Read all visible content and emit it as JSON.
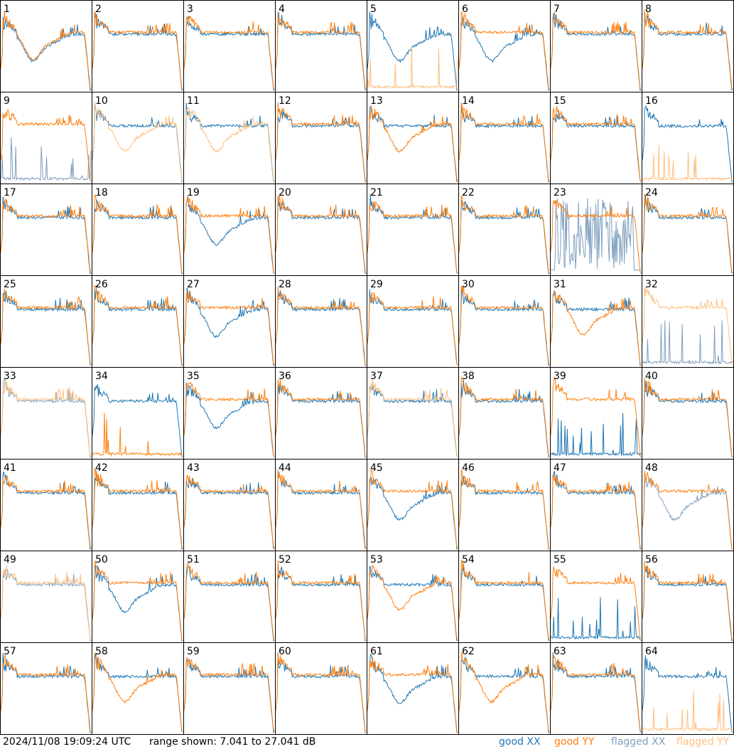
{
  "footer": {
    "timestamp": "2024/11/08 19:09:24 UTC",
    "range_text": "range shown: 7.041 to 27.041 dB",
    "legend": {
      "good_xx": "good XX",
      "good_yy": "good YY",
      "flagged_xx": "flagged XX",
      "flagged_yy": "flagged YY"
    }
  },
  "colors": {
    "good_xx": "#1f77b4",
    "good_yy": "#ff7f0e",
    "flagged_xx": "#7f9fbf",
    "flagged_yy": "#ffbf80",
    "grid": "#000000"
  },
  "chart_data": {
    "type": "line",
    "layout": "8x8 small multiples (bandpass spectra per antenna)",
    "ylim": [
      7.041,
      27.041
    ],
    "yunit": "dB",
    "panels": [
      {
        "id": "1",
        "xx": "good",
        "yy": "good",
        "shape_xx": "sag",
        "shape_yy": "sag"
      },
      {
        "id": "2",
        "xx": "good",
        "yy": "good"
      },
      {
        "id": "3",
        "xx": "good",
        "yy": "good"
      },
      {
        "id": "4",
        "xx": "good",
        "yy": "good"
      },
      {
        "id": "5",
        "xx": "good",
        "yy": "flagged",
        "shape_xx": "sag",
        "shape_yy": "low"
      },
      {
        "id": "6",
        "xx": "good",
        "yy": "good",
        "shape_xx": "sag"
      },
      {
        "id": "7",
        "xx": "good",
        "yy": "good"
      },
      {
        "id": "8",
        "xx": "good",
        "yy": "good"
      },
      {
        "id": "9",
        "xx": "flagged",
        "yy": "good",
        "shape_xx": "low"
      },
      {
        "id": "10",
        "xx": "good",
        "yy": "flagged",
        "shape_yy": "sag"
      },
      {
        "id": "11",
        "xx": "good",
        "yy": "flagged",
        "shape_yy": "sag"
      },
      {
        "id": "12",
        "xx": "good",
        "yy": "good"
      },
      {
        "id": "13",
        "xx": "good",
        "yy": "good",
        "shape_yy": "sag"
      },
      {
        "id": "14",
        "xx": "good",
        "yy": "good"
      },
      {
        "id": "15",
        "xx": "good",
        "yy": "good"
      },
      {
        "id": "16",
        "xx": "good",
        "yy": "flagged",
        "shape_yy": "low"
      },
      {
        "id": "17",
        "xx": "good",
        "yy": "good"
      },
      {
        "id": "18",
        "xx": "good",
        "yy": "good"
      },
      {
        "id": "19",
        "xx": "good",
        "yy": "good",
        "shape_xx": "sag"
      },
      {
        "id": "20",
        "xx": "good",
        "yy": "good"
      },
      {
        "id": "21",
        "xx": "good",
        "yy": "good"
      },
      {
        "id": "22",
        "xx": "good",
        "yy": "good"
      },
      {
        "id": "23",
        "xx": "flagged",
        "yy": "good",
        "shape_xx": "noise"
      },
      {
        "id": "24",
        "xx": "good",
        "yy": "good"
      },
      {
        "id": "25",
        "xx": "good",
        "yy": "good"
      },
      {
        "id": "26",
        "xx": "good",
        "yy": "good"
      },
      {
        "id": "27",
        "xx": "good",
        "yy": "good",
        "shape_xx": "sag"
      },
      {
        "id": "28",
        "xx": "good",
        "yy": "good"
      },
      {
        "id": "29",
        "xx": "good",
        "yy": "good"
      },
      {
        "id": "30",
        "xx": "good",
        "yy": "good"
      },
      {
        "id": "31",
        "xx": "good",
        "yy": "good",
        "shape_yy": "sag"
      },
      {
        "id": "32",
        "xx": "flagged",
        "yy": "flagged",
        "shape_xx": "low"
      },
      {
        "id": "33",
        "xx": "flagged",
        "yy": "flagged"
      },
      {
        "id": "34",
        "xx": "good",
        "yy": "good",
        "shape_yy": "low"
      },
      {
        "id": "35",
        "xx": "good",
        "yy": "good",
        "shape_xx": "sag"
      },
      {
        "id": "36",
        "xx": "good",
        "yy": "good"
      },
      {
        "id": "37",
        "xx": "good",
        "yy": "flagged"
      },
      {
        "id": "38",
        "xx": "good",
        "yy": "good"
      },
      {
        "id": "39",
        "xx": "good",
        "yy": "good",
        "shape_xx": "low"
      },
      {
        "id": "40",
        "xx": "good",
        "yy": "good"
      },
      {
        "id": "41",
        "xx": "good",
        "yy": "good"
      },
      {
        "id": "42",
        "xx": "good",
        "yy": "good"
      },
      {
        "id": "43",
        "xx": "good",
        "yy": "good"
      },
      {
        "id": "44",
        "xx": "good",
        "yy": "good"
      },
      {
        "id": "45",
        "xx": "good",
        "yy": "good",
        "shape_xx": "sag"
      },
      {
        "id": "46",
        "xx": "good",
        "yy": "good"
      },
      {
        "id": "47",
        "xx": "good",
        "yy": "good"
      },
      {
        "id": "48",
        "xx": "flagged",
        "yy": "good",
        "shape_xx": "sag"
      },
      {
        "id": "49",
        "xx": "flagged",
        "yy": "flagged"
      },
      {
        "id": "50",
        "xx": "good",
        "yy": "good",
        "shape_xx": "sag"
      },
      {
        "id": "51",
        "xx": "good",
        "yy": "good"
      },
      {
        "id": "52",
        "xx": "good",
        "yy": "good"
      },
      {
        "id": "53",
        "xx": "good",
        "yy": "good",
        "shape_yy": "sag"
      },
      {
        "id": "54",
        "xx": "good",
        "yy": "good"
      },
      {
        "id": "55",
        "xx": "good",
        "yy": "good",
        "shape_xx": "low"
      },
      {
        "id": "56",
        "xx": "good",
        "yy": "good"
      },
      {
        "id": "57",
        "xx": "good",
        "yy": "good"
      },
      {
        "id": "58",
        "xx": "good",
        "yy": "good",
        "shape_yy": "sag"
      },
      {
        "id": "59",
        "xx": "good",
        "yy": "good"
      },
      {
        "id": "60",
        "xx": "good",
        "yy": "good"
      },
      {
        "id": "61",
        "xx": "good",
        "yy": "good",
        "shape_xx": "sag"
      },
      {
        "id": "62",
        "xx": "good",
        "yy": "good",
        "shape_yy": "sag"
      },
      {
        "id": "63",
        "xx": "good",
        "yy": "good"
      },
      {
        "id": "64",
        "xx": "good",
        "yy": "flagged",
        "shape_yy": "low"
      }
    ]
  }
}
